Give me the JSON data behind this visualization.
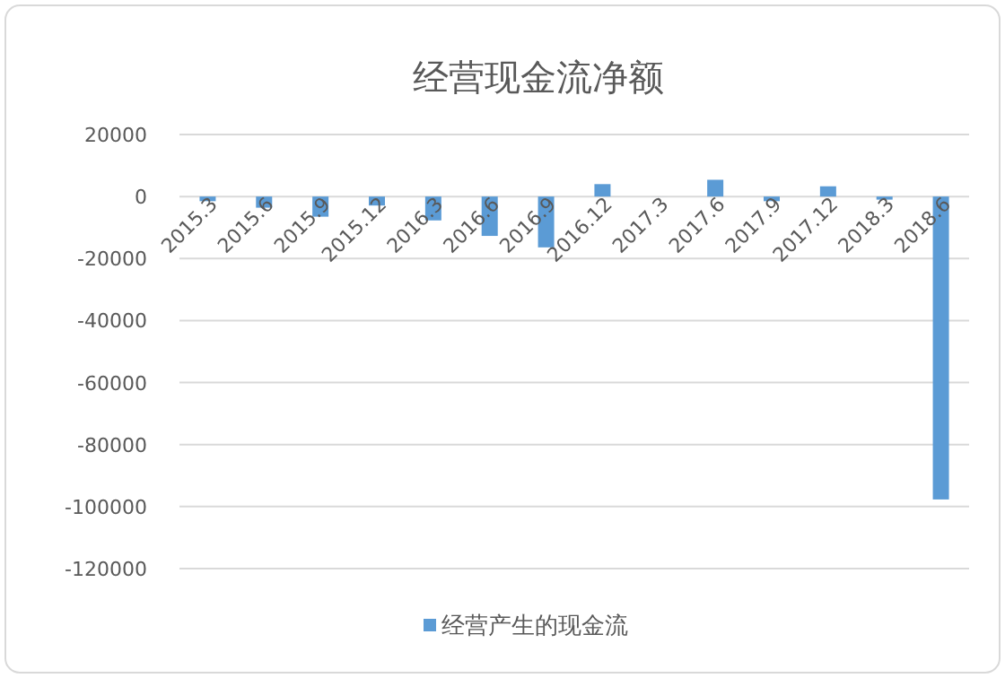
{
  "chart_data": {
    "type": "bar",
    "title": "经营现金流净额",
    "categories": [
      "2015.3",
      "2015.6",
      "2015.9",
      "2015.12",
      "2016.3",
      "2016.6",
      "2016.9",
      "2016.12",
      "2017.3",
      "2017.6",
      "2017.9",
      "2017.12",
      "2018.3",
      "2018.6"
    ],
    "series": [
      {
        "name": "经营产生的现金流",
        "color": "#5b9bd5",
        "values": [
          -1500,
          -3600,
          -6500,
          -2900,
          -7700,
          -12700,
          -16400,
          4000,
          0,
          5400,
          -1500,
          3300,
          -1000,
          -97700
        ]
      }
    ],
    "ylim": [
      -120000,
      20000
    ],
    "yticks": [
      -120000,
      -100000,
      -80000,
      -60000,
      -40000,
      -20000,
      0,
      20000
    ],
    "grid": "y",
    "legend": "bottom"
  }
}
